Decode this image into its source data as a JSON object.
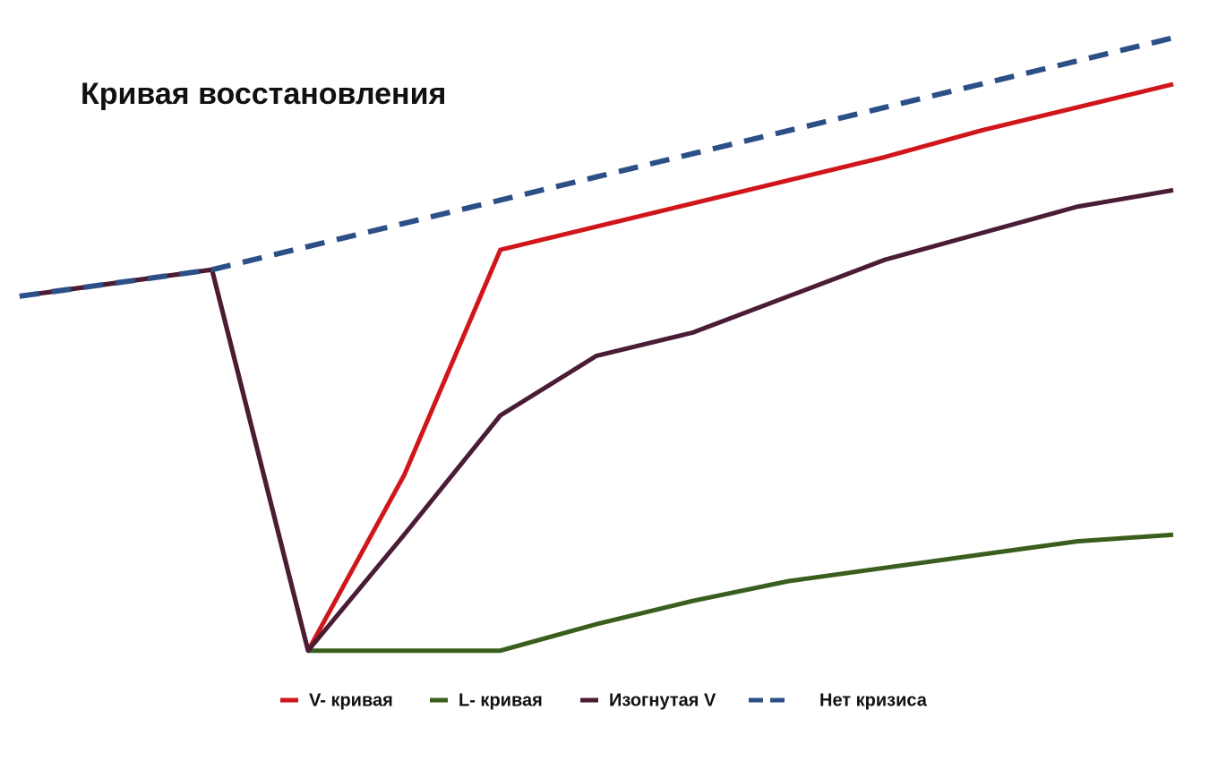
{
  "chart_data": {
    "type": "line",
    "title": "Кривая восстановления",
    "categories": [
      null,
      null,
      null,
      null,
      null,
      null,
      null,
      null,
      null,
      null,
      null,
      null,
      null
    ],
    "ylim": [
      0,
      100
    ],
    "series": [
      {
        "name": "L- кривая",
        "color": "#3a5e1e",
        "dash": false,
        "values": [
          58,
          60,
          62,
          4.5,
          4.5,
          4.5,
          8.5,
          12,
          15,
          17,
          19,
          21,
          22
        ]
      },
      {
        "name": "V- кривая",
        "color": "#d0161b",
        "dash": false,
        "values": [
          58,
          60,
          62,
          4.5,
          31,
          65,
          68.5,
          72,
          75.5,
          79,
          83,
          86.5,
          90
        ]
      },
      {
        "name": "Изогнутая V",
        "color": "#4a1c35",
        "dash": false,
        "values": [
          58,
          60,
          62,
          4.5,
          22,
          40,
          49,
          52.5,
          58,
          63.5,
          67.5,
          71.5,
          74
        ]
      },
      {
        "name": "Нет кризиса",
        "color": "#2b4f86",
        "dash": true,
        "values": [
          58,
          60,
          62,
          65.5,
          69,
          72.5,
          76,
          79.5,
          83,
          86.5,
          90,
          93.5,
          97
        ]
      }
    ],
    "legend_order": [
      1,
      0,
      2,
      3
    ]
  }
}
